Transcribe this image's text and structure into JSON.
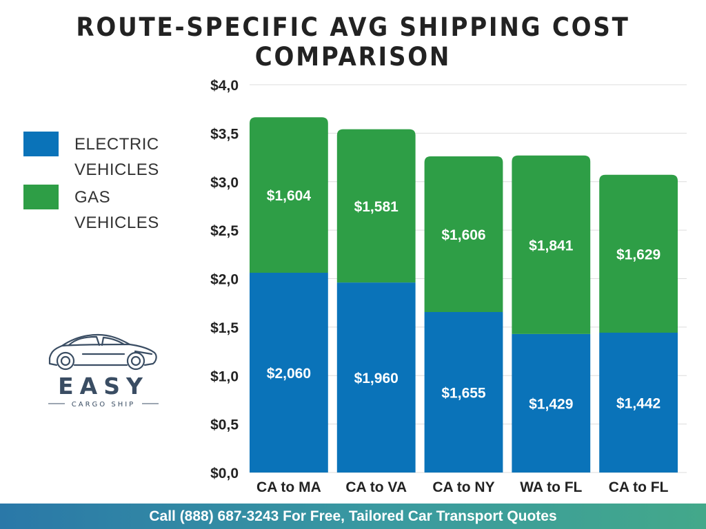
{
  "title": "ROUTE-SPECIFIC AVG SHIPPING COST COMPARISON",
  "legend": [
    {
      "label_line1": "ELECTRIC",
      "label_line2": "VEHICLES",
      "color": "#0a73b9"
    },
    {
      "label_line1": "GAS",
      "label_line2": "VEHICLES",
      "color": "#2e9e46"
    }
  ],
  "logo": {
    "brand": "EASY",
    "subtitle": "CARGO SHIP",
    "color": "#3a4d63"
  },
  "footer": {
    "text": "Call (888) 687-3243 For Free, Tailored Car Transport Quotes"
  },
  "chart_data": {
    "type": "bar",
    "stacked": true,
    "categories": [
      "CA to MA",
      "CA to VA",
      "CA to NY",
      "WA to FL",
      "CA to FL"
    ],
    "series": [
      {
        "name": "ELECTRIC VEHICLES",
        "color": "#0a73b9",
        "values": [
          2060,
          1960,
          1655,
          1429,
          1442
        ],
        "labels": [
          "$2,060",
          "$1,960",
          "$1,655",
          "$1,429",
          "$1,442"
        ]
      },
      {
        "name": "GAS VEHICLES",
        "color": "#2e9e46",
        "values": [
          1604,
          1581,
          1606,
          1841,
          1629
        ],
        "labels": [
          "$1,604",
          "$1,581",
          "$1,606",
          "$1,841",
          "$1,629"
        ]
      }
    ],
    "ylim": [
      0,
      4000
    ],
    "yticks": [
      0,
      500,
      1000,
      1500,
      2000,
      2500,
      3000,
      3500,
      4000
    ],
    "ytick_labels": [
      "$0,0",
      "$0,5",
      "$1,0",
      "$1,5",
      "$2,0",
      "$2,5",
      "$3,0",
      "$3,5",
      "$4,0"
    ],
    "xlabel": "",
    "ylabel": "",
    "grid": true,
    "legend_position": "left"
  }
}
